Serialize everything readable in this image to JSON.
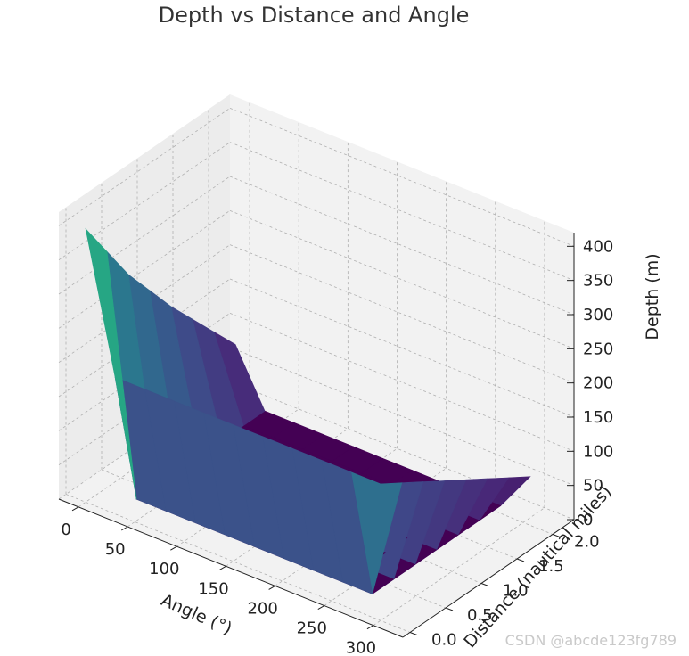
{
  "chart_data": {
    "type": "surface3d",
    "title": "Depth vs Distance and Angle",
    "xlabel": "Angle (°)",
    "ylabel": "Distance (nautical miles)",
    "zlabel": "Depth (m)",
    "x_ticks": [
      "0",
      "50",
      "100",
      "150",
      "200",
      "250",
      "300"
    ],
    "y_ticks": [
      "0.0",
      "0.5",
      "1.0",
      "1.5",
      "2.0"
    ],
    "z_ticks": [
      "0",
      "50",
      "100",
      "150",
      "200",
      "250",
      "300",
      "350",
      "400"
    ],
    "xlim": [
      -20,
      330
    ],
    "ylim": [
      -0.1,
      2.3
    ],
    "zlim": [
      0,
      420
    ],
    "colormap": "viridis",
    "angles": [
      0,
      30,
      60,
      90,
      120,
      150,
      180,
      210,
      240,
      270,
      300
    ],
    "distances": [
      0.0,
      0.3,
      0.6,
      0.9,
      1.2,
      1.5,
      1.8,
      2.1
    ],
    "depth_grid": [
      [
        400,
        345,
        290,
        245,
        200,
        160,
        120,
        80
      ],
      [
        200,
        0,
        0,
        0,
        0,
        0,
        0,
        0
      ],
      [
        200,
        0,
        0,
        0,
        0,
        0,
        0,
        0
      ],
      [
        200,
        0,
        0,
        0,
        0,
        0,
        0,
        0
      ],
      [
        200,
        0,
        0,
        0,
        0,
        0,
        0,
        0
      ],
      [
        200,
        0,
        0,
        0,
        0,
        0,
        0,
        0
      ],
      [
        200,
        0,
        0,
        0,
        0,
        0,
        0,
        0
      ],
      [
        200,
        0,
        0,
        0,
        0,
        0,
        0,
        0
      ],
      [
        200,
        0,
        0,
        0,
        0,
        0,
        0,
        0
      ],
      [
        200,
        0,
        0,
        0,
        0,
        0,
        0,
        0
      ],
      [
        200,
        180,
        160,
        140,
        120,
        100,
        80,
        60
      ]
    ],
    "grid": true
  },
  "watermark": "CSDN @abcde123fg789"
}
